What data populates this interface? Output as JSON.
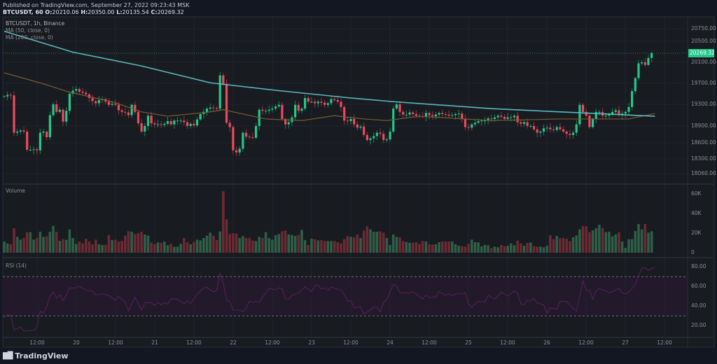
{
  "header": {
    "published": "Published on TradingView.com, September 27, 2022 09:23:43 MSK",
    "symbol_line": "BTCUSDT, 60",
    "ohlc": {
      "o_label": "O:",
      "o": "20210.06",
      "h_label": "H:",
      "h": "20350.00",
      "l_label": "L:",
      "l": "20135.54",
      "c_label": "C:",
      "c": "20269.32"
    }
  },
  "legend": {
    "symbol": "BTCUSDT, 1h, Binance",
    "ma50": "MA (50, close, 0)",
    "ma200": "MA (200, close, 0)",
    "volume": "Volume",
    "rsi": "RSI (14)"
  },
  "colors": {
    "up": "#22c98a",
    "down": "#ee4a5d",
    "vol_up": "#2e5e48",
    "vol_down": "#6b2a33",
    "ma50": "#7a5a35",
    "ma200": "#5ab8c0",
    "rsi": "#5b1f5f",
    "rsi_band": "#221a2a",
    "price_label_bg": "#22c98a"
  },
  "price_axis": {
    "ticks": [
      "20750.00",
      "20500.00",
      "20100.00",
      "19700.00",
      "19300.00",
      "18900.00",
      "18600.00",
      "18300.00",
      "18060.00"
    ],
    "current": "20269.32"
  },
  "volume_axis": {
    "ticks": [
      "60K",
      "40K",
      "20K",
      "0"
    ]
  },
  "rsi_axis": {
    "ticks": [
      "80.00",
      "60.00",
      "40.00",
      "20.00"
    ],
    "upper_band": 70,
    "lower_band": 30
  },
  "time_axis": {
    "labels": [
      "12:00",
      "20",
      "12:00",
      "21",
      "12:00",
      "22",
      "12:00",
      "23",
      "12:00",
      "24",
      "12:00",
      "25",
      "12:00",
      "26",
      "12:00",
      "27",
      "12:00"
    ]
  },
  "footer": {
    "brand": "TradingView",
    "logo_text": "TV"
  },
  "chart_data": {
    "type": "candlestick",
    "interval": "1h",
    "closes": [
      19450,
      19480,
      19470,
      18780,
      18800,
      18820,
      18800,
      18470,
      18470,
      18480,
      18460,
      18780,
      18800,
      18700,
      19100,
      19300,
      19160,
      19200,
      18980,
      19180,
      19500,
      19560,
      19590,
      19540,
      19520,
      19490,
      19420,
      19360,
      19320,
      19380,
      19400,
      19350,
      19290,
      19310,
      19290,
      19190,
      19160,
      19150,
      19100,
      19290,
      19160,
      18950,
      18800,
      18900,
      19090,
      18950,
      18930,
      18930,
      18920,
      18940,
      18990,
      18930,
      19000,
      19000,
      19000,
      18970,
      18900,
      18940,
      18910,
      19020,
      19120,
      19160,
      19220,
      19240,
      19230,
      19220,
      19850,
      19690,
      18960,
      18880,
      18460,
      18420,
      18490,
      18780,
      18710,
      18700,
      18690,
      18900,
      19200,
      19180,
      19180,
      19200,
      19220,
      19260,
      19290,
      19030,
      18930,
      18970,
      19060,
      19290,
      19180,
      19220,
      19420,
      19350,
      19350,
      19320,
      19350,
      19330,
      19290,
      19320,
      19400,
      19380,
      19350,
      19250,
      19000,
      18990,
      19030,
      18930,
      18870,
      18890,
      18740,
      18650,
      18680,
      18720,
      18780,
      18760,
      18650,
      18660,
      18800,
      19220,
      19300,
      19160,
      19110,
      19110,
      19150,
      19120,
      19090,
      19080,
      19070,
      19140,
      19100,
      19080,
      19110,
      19140,
      19120,
      19110,
      19090,
      19100,
      19120,
      19130,
      19030,
      18880,
      18870,
      18930,
      18960,
      18990,
      19000,
      19000,
      19040,
      19030,
      19060,
      19090,
      19070,
      19030,
      19060,
      19060,
      19090,
      18970,
      18940,
      18970,
      18900,
      18900,
      18840,
      18780,
      18800,
      18860,
      18870,
      18840,
      18830,
      18880,
      18840,
      18800,
      18760,
      18740,
      18780,
      18930,
      19290,
      19160,
      19090,
      18880,
      19030,
      19160,
      19160,
      19090,
      19090,
      19120,
      19160,
      19190,
      19100,
      19130,
      19160,
      19250,
      19550,
      19800,
      20080,
      20100,
      20050,
      20180,
      20269.32
    ],
    "volume_k": [
      11.4,
      9.5,
      8.6,
      25,
      16.2,
      13.3,
      15,
      20.9,
      20.9,
      13.3,
      15,
      21.4,
      16.2,
      16.7,
      21.4,
      27.4,
      21.4,
      12.1,
      13.8,
      13.1,
      23.8,
      15,
      9,
      11.4,
      9.5,
      14.3,
      11.4,
      8.6,
      13.3,
      8.6,
      7.9,
      7.9,
      17.9,
      12.9,
      13.3,
      11.4,
      12.1,
      17.4,
      22.1,
      21.4,
      19,
      20,
      21.4,
      18.6,
      17.4,
      10.5,
      8.6,
      10.5,
      10,
      11.4,
      7.6,
      9,
      6,
      6.2,
      9,
      15,
      10.7,
      8.6,
      10.9,
      13.3,
      12.6,
      15,
      17.4,
      20.5,
      17.4,
      12.9,
      21.7,
      62.8,
      34,
      19,
      20,
      19.5,
      15,
      16.9,
      15,
      15,
      12.4,
      11.9,
      16.2,
      15,
      20.9,
      15,
      13.3,
      17.9,
      19,
      21.9,
      22.6,
      18.6,
      18.1,
      17.1,
      18.1,
      23.3,
      12.9,
      7.9,
      14.3,
      13.8,
      12.6,
      12.9,
      11.9,
      11.9,
      11.9,
      11.9,
      10.7,
      9.5,
      13.8,
      16.9,
      16.2,
      15.7,
      18.6,
      15,
      22.6,
      26.9,
      23.8,
      21.4,
      21.4,
      21.9,
      20.5,
      15,
      7.9,
      18.6,
      16.2,
      15.7,
      11.9,
      10.9,
      10.2,
      10.2,
      10.7,
      9,
      11.9,
      11.4,
      8.6,
      8.3,
      8.6,
      10.7,
      11.4,
      11.4,
      11.4,
      11.4,
      8.6,
      7.1,
      6.7,
      6.2,
      9,
      13.3,
      10.7,
      10.5,
      6.4,
      7.9,
      7.6,
      4.8,
      6.2,
      5.5,
      7.9,
      6.7,
      7.1,
      9.5,
      7.6,
      12.4,
      9.5,
      7.1,
      10,
      10.5,
      6.7,
      6.2,
      6.2,
      5.5,
      7.1,
      17.9,
      13.8,
      17.1,
      14.8,
      15,
      14.3,
      11.9,
      15.7,
      17.6,
      23.8,
      27.1,
      27.1,
      20.9,
      22.8,
      25,
      28.6,
      25.2,
      20.9,
      21.4,
      16.7,
      18.6,
      20.7,
      11.4,
      5,
      13.8,
      13.8,
      22.1,
      29.3,
      23.8,
      29.3,
      20.5,
      21.9,
      10.7
    ],
    "ma200": [
      [
        0,
        20700
      ],
      [
        21,
        20290
      ],
      [
        42,
        20030
      ],
      [
        63,
        19710
      ],
      [
        84,
        19560
      ],
      [
        106,
        19420
      ],
      [
        119,
        19350
      ],
      [
        149,
        19220
      ],
      [
        170,
        19160
      ],
      [
        199,
        19080
      ]
    ],
    "ma50": [
      [
        0,
        19900
      ],
      [
        12,
        19690
      ],
      [
        20,
        19530
      ],
      [
        33,
        19350
      ],
      [
        42,
        19160
      ],
      [
        50,
        19080
      ],
      [
        63,
        19160
      ],
      [
        67,
        19200
      ],
      [
        80,
        19030
      ],
      [
        91,
        19000
      ],
      [
        101,
        19090
      ],
      [
        110,
        19030
      ],
      [
        117,
        19000
      ],
      [
        127,
        19080
      ],
      [
        149,
        19000
      ],
      [
        170,
        19030
      ],
      [
        191,
        19030
      ],
      [
        199,
        19130
      ]
    ],
    "rsi": [
      [
        0,
        27.6
      ],
      [
        1,
        31.2
      ],
      [
        2,
        30.5
      ],
      [
        3,
        15.7
      ],
      [
        5,
        18.6
      ],
      [
        6,
        14.5
      ],
      [
        9,
        15.2
      ],
      [
        10,
        18.6
      ],
      [
        11,
        34.8
      ],
      [
        12,
        32.9
      ],
      [
        13,
        39.5
      ],
      [
        14,
        50.2
      ],
      [
        15,
        54.5
      ],
      [
        16,
        48.3
      ],
      [
        17,
        51.4
      ],
      [
        18,
        45.5
      ],
      [
        19,
        51.4
      ],
      [
        20,
        58.6
      ],
      [
        22,
        58.6
      ],
      [
        23,
        60.2
      ],
      [
        24,
        58.1
      ],
      [
        26,
        55.5
      ],
      [
        27,
        55.5
      ],
      [
        28,
        51.4
      ],
      [
        30,
        52.4
      ],
      [
        32,
        51
      ],
      [
        34,
        46
      ],
      [
        35,
        49.8
      ],
      [
        37,
        44.3
      ],
      [
        38,
        35.2
      ],
      [
        40,
        49
      ],
      [
        42,
        36
      ],
      [
        43,
        43.6
      ],
      [
        45,
        43.6
      ],
      [
        46,
        40.7
      ],
      [
        47,
        43.8
      ],
      [
        48,
        41.4
      ],
      [
        49,
        43.6
      ],
      [
        50,
        41.9
      ],
      [
        51,
        47.4
      ],
      [
        53,
        47.1
      ],
      [
        55,
        42.4
      ],
      [
        56,
        45.5
      ],
      [
        57,
        42.6
      ],
      [
        59,
        52.1
      ],
      [
        61,
        58.6
      ],
      [
        62,
        59
      ],
      [
        64,
        54.5
      ],
      [
        65,
        56.2
      ],
      [
        66,
        73.8
      ],
      [
        67,
        63.3
      ],
      [
        68,
        46
      ],
      [
        69,
        44.8
      ],
      [
        70,
        36
      ],
      [
        72,
        36
      ],
      [
        73,
        34.3
      ],
      [
        74,
        38.3
      ],
      [
        75,
        45
      ],
      [
        76,
        43.8
      ],
      [
        77,
        44.8
      ],
      [
        78,
        43.6
      ],
      [
        79,
        49
      ],
      [
        81,
        58.1
      ],
      [
        83,
        56.7
      ],
      [
        84,
        58.6
      ],
      [
        85,
        57.9
      ],
      [
        86,
        47.4
      ],
      [
        87,
        47.1
      ],
      [
        88,
        51
      ],
      [
        90,
        53.1
      ],
      [
        92,
        59.8
      ],
      [
        94,
        54.5
      ],
      [
        95,
        61
      ],
      [
        96,
        61
      ],
      [
        97,
        57.4
      ],
      [
        98,
        58.6
      ],
      [
        99,
        56.2
      ],
      [
        100,
        59.5
      ],
      [
        103,
        56.2
      ],
      [
        104,
        51.4
      ],
      [
        105,
        45
      ],
      [
        106,
        45.5
      ],
      [
        107,
        38.3
      ],
      [
        109,
        39.5
      ],
      [
        110,
        31.9
      ],
      [
        112,
        36
      ],
      [
        113,
        38.8
      ],
      [
        114,
        38.8
      ],
      [
        115,
        34
      ],
      [
        116,
        43.6
      ],
      [
        117,
        46.7
      ],
      [
        119,
        62.1
      ],
      [
        120,
        60.5
      ],
      [
        121,
        53.8
      ],
      [
        124,
        53.3
      ],
      [
        125,
        55
      ],
      [
        126,
        52.1
      ],
      [
        128,
        47.4
      ],
      [
        129,
        51
      ],
      [
        130,
        48.6
      ],
      [
        132,
        49.5
      ],
      [
        133,
        55
      ],
      [
        135,
        51
      ],
      [
        136,
        52.6
      ],
      [
        137,
        51
      ],
      [
        139,
        53.3
      ],
      [
        140,
        52.1
      ],
      [
        141,
        53.8
      ],
      [
        142,
        42.4
      ],
      [
        143,
        39
      ],
      [
        145,
        45
      ],
      [
        147,
        44.3
      ],
      [
        148,
        51
      ],
      [
        150,
        47.1
      ],
      [
        152,
        54.3
      ],
      [
        154,
        50.2
      ],
      [
        156,
        55.5
      ],
      [
        157,
        53.3
      ],
      [
        158,
        42.4
      ],
      [
        159,
        41.4
      ],
      [
        160,
        46.2
      ],
      [
        161,
        45.5
      ],
      [
        162,
        47.9
      ],
      [
        163,
        43.1
      ],
      [
        165,
        41.4
      ],
      [
        166,
        32.9
      ],
      [
        167,
        38.3
      ],
      [
        169,
        36.7
      ],
      [
        170,
        45
      ],
      [
        172,
        44.8
      ],
      [
        173,
        40.7
      ],
      [
        175,
        34.8
      ],
      [
        177,
        65.7
      ],
      [
        178,
        56.2
      ],
      [
        179,
        56.2
      ],
      [
        180,
        47.1
      ],
      [
        181,
        55.7
      ],
      [
        182,
        58.1
      ],
      [
        184,
        55.5
      ],
      [
        185,
        53.3
      ],
      [
        188,
        58.1
      ],
      [
        189,
        53.3
      ],
      [
        190,
        52.4
      ],
      [
        191,
        54.5
      ],
      [
        193,
        61.7
      ],
      [
        194,
        71.7
      ],
      [
        195,
        78.8
      ],
      [
        196,
        78.8
      ],
      [
        197,
        76.4
      ],
      [
        198,
        78.3
      ],
      [
        199,
        79.5
      ]
    ]
  }
}
